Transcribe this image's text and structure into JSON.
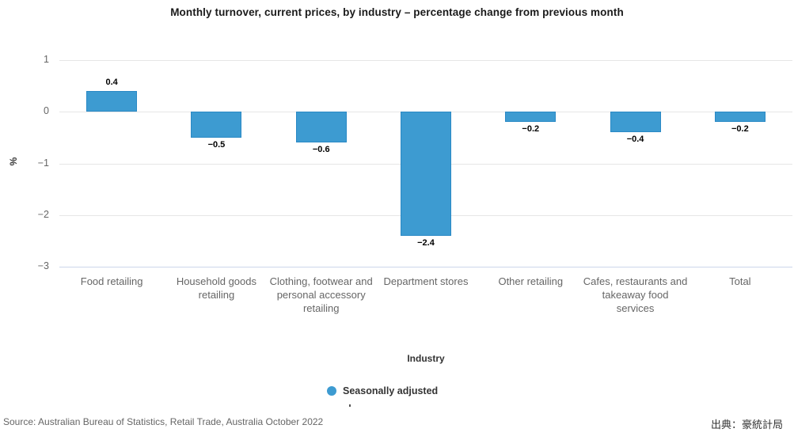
{
  "title": "Monthly turnover, current prices, by industry – percentage change from previous month",
  "chart_data": {
    "type": "bar",
    "categories": [
      "Food retailing",
      "Household goods retailing",
      "Clothing, footwear and personal accessory retailing",
      "Department stores",
      "Other retailing",
      "Cafes, restaurants and takeaway food services",
      "Total"
    ],
    "series": [
      {
        "name": "Seasonally adjusted",
        "values": [
          0.4,
          -0.5,
          -0.6,
          -2.4,
          -0.2,
          -0.4,
          -0.2
        ]
      }
    ],
    "values": [
      0.4,
      -0.5,
      -0.6,
      -2.4,
      -0.2,
      -0.4,
      -0.2
    ],
    "value_labels": [
      "0.4",
      "−0.5",
      "−0.6",
      "−2.4",
      "−0.2",
      "−0.4",
      "−0.2"
    ],
    "title": "Monthly turnover, current prices, by industry – percentage change from previous month",
    "xlabel": "Industry",
    "ylabel": "%",
    "ylim": [
      -3,
      1
    ],
    "yticks": [
      1,
      0,
      -1,
      -2,
      -3
    ],
    "ytick_labels": [
      "1",
      "0",
      "−1",
      "−2",
      "−3"
    ],
    "grid": true,
    "legend_position": "bottom-center",
    "bar_color": "#3d9bd1",
    "bar_border_color": "#2a89c5"
  },
  "legend": {
    "label": "Seasonally adjusted",
    "marker_color": "#3d9bd1"
  },
  "footer": {
    "source": "Source: Australian Bureau of Statistics, Retail Trade, Australia October 2022",
    "attribution": "出典：豪統計局"
  }
}
